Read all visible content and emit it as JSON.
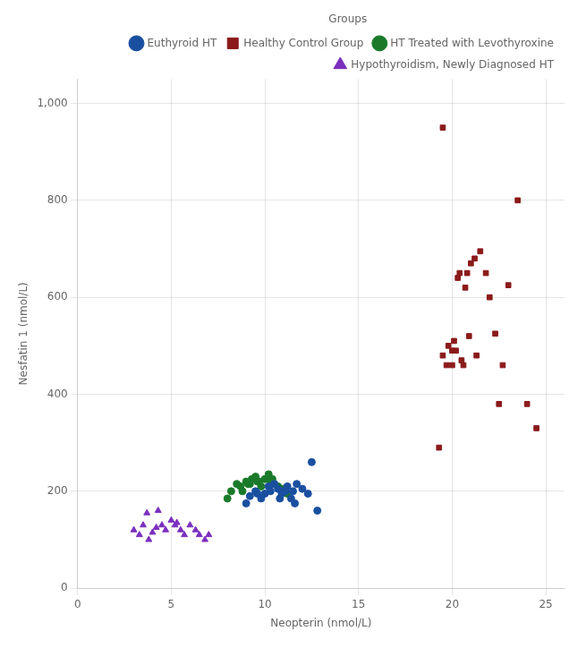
{
  "chart_data": {
    "type": "scatter",
    "x_label": "Neopterin (nmol/L)",
    "y_label": "Nesfatin 1 (nmol/L)",
    "xlim": [
      0,
      26
    ],
    "ylim": [
      0,
      1050
    ],
    "xticks": [
      0,
      5,
      10,
      15,
      20,
      25
    ],
    "yticks": [
      0,
      200,
      400,
      600,
      800,
      1000
    ],
    "grid": true,
    "legend": "upper right",
    "legend_title": "Groups",
    "series": [
      {
        "name": "Euthyroid HT",
        "color": "#1a4fa0",
        "marker": "circle",
        "x": [
          9.2,
          9.5,
          9.8,
          10.0,
          10.2,
          10.3,
          10.5,
          10.7,
          10.9,
          11.0,
          11.2,
          11.4,
          11.5,
          11.7,
          12.0,
          12.3,
          12.5,
          12.8,
          9.0,
          9.6,
          10.8,
          11.1,
          11.6
        ],
        "y": [
          190,
          200,
          185,
          195,
          210,
          200,
          215,
          205,
          195,
          200,
          210,
          185,
          200,
          215,
          205,
          195,
          260,
          160,
          175,
          195,
          185,
          200,
          175
        ]
      },
      {
        "name": "Healthy Control Group",
        "color": "#8b1a1a",
        "marker": "square",
        "x": [
          19.5,
          19.5,
          19.7,
          19.8,
          20.0,
          20.0,
          20.1,
          20.2,
          20.3,
          20.4,
          20.5,
          20.6,
          20.7,
          20.8,
          21.0,
          21.2,
          21.5,
          21.8,
          22.0,
          22.3,
          22.5,
          22.7,
          23.0,
          23.5,
          24.0,
          24.5,
          19.3,
          20.9,
          21.3
        ],
        "y": [
          950,
          480,
          460,
          500,
          460,
          490,
          510,
          490,
          640,
          650,
          470,
          460,
          620,
          650,
          670,
          680,
          695,
          650,
          600,
          525,
          380,
          460,
          625,
          800,
          380,
          330,
          290,
          520,
          480
        ]
      },
      {
        "name": "HT Treated with Levothyroxine",
        "color": "#1a7a2a",
        "marker": "circle",
        "x": [
          8.0,
          8.2,
          8.5,
          8.7,
          9.0,
          9.2,
          9.3,
          9.5,
          9.7,
          9.8,
          10.0,
          10.2,
          10.3,
          10.5,
          10.7,
          11.0,
          11.2,
          8.8,
          9.1,
          9.6,
          10.8,
          10.4
        ],
        "y": [
          185,
          200,
          215,
          210,
          220,
          215,
          225,
          230,
          220,
          210,
          225,
          235,
          220,
          215,
          210,
          205,
          195,
          200,
          215,
          220,
          205,
          225
        ]
      },
      {
        "name": "Hypothyroidism, Newly Diagnosed HT",
        "color": "#7b2fbe",
        "marker": "triangle",
        "x": [
          3.0,
          3.3,
          3.5,
          3.8,
          4.0,
          4.2,
          4.5,
          4.7,
          5.0,
          5.2,
          5.5,
          5.7,
          6.0,
          6.3,
          6.5,
          7.0,
          3.7,
          4.3,
          5.3,
          6.8
        ],
        "y": [
          120,
          110,
          130,
          100,
          115,
          125,
          130,
          120,
          140,
          130,
          120,
          110,
          130,
          120,
          110,
          110,
          155,
          160,
          135,
          100
        ]
      }
    ]
  }
}
